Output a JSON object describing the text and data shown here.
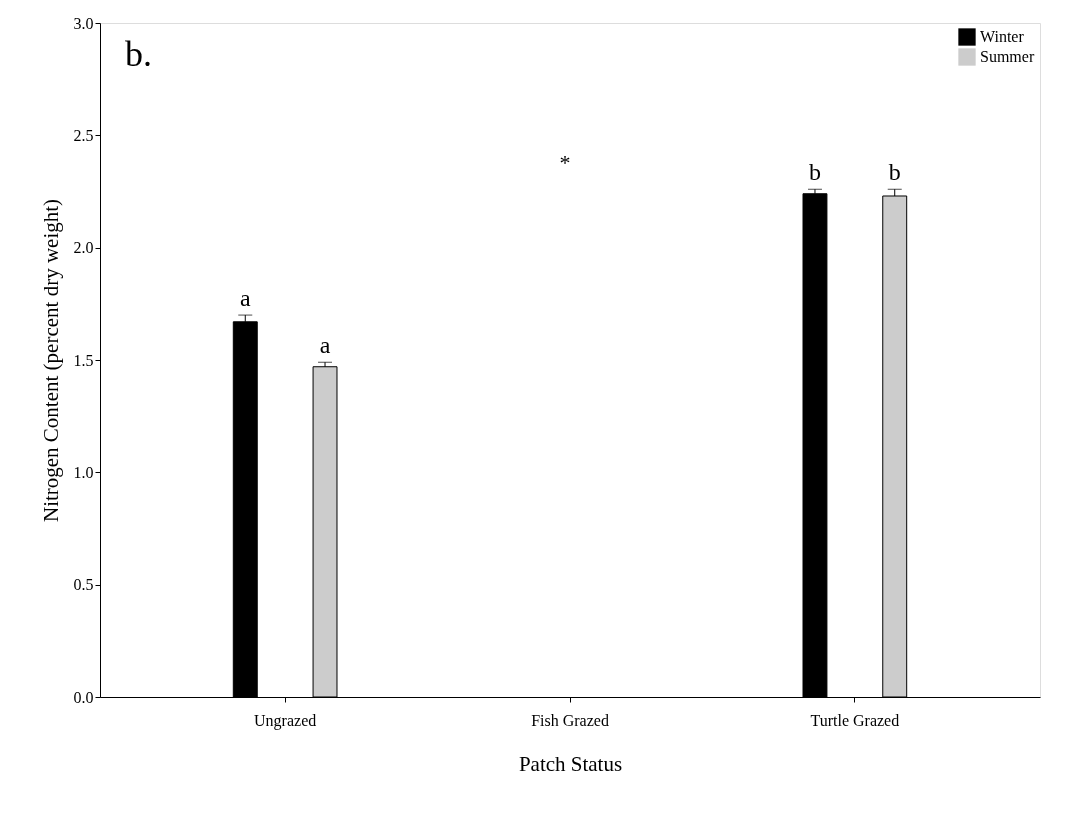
{
  "chart_data": {
    "type": "bar",
    "xlabel": "Patch Status",
    "ylabel": "Nitrogen Content (percent dry weight)",
    "categories": [
      "Ungrazed",
      "Fish Grazed",
      "Turtle Grazed"
    ],
    "series": [
      {
        "name": "Winter",
        "color": "#000000",
        "values": [
          1.67,
          null,
          2.24
        ],
        "errors": [
          [
            1.67,
            1.7
          ],
          null,
          [
            2.24,
            2.26
          ]
        ],
        "value_labels": [
          "a",
          null,
          "b"
        ]
      },
      {
        "name": "Summer",
        "color": "#cccccc",
        "values": [
          1.47,
          null,
          2.23
        ],
        "errors": [
          [
            1.47,
            1.49
          ],
          null,
          [
            2.23,
            2.26
          ]
        ],
        "value_labels": [
          "a",
          null,
          "b"
        ]
      }
    ],
    "ylim": [
      0,
      3
    ],
    "yticks": [
      {
        "value": 0,
        "label": "0.0"
      },
      {
        "value": 0.5,
        "label": "0.5"
      },
      {
        "value": 1,
        "label": "1.0"
      },
      {
        "value": 1.5,
        "label": "1.5"
      },
      {
        "value": 2,
        "label": "2.0"
      },
      {
        "value": 2.5,
        "label": "2.5"
      },
      {
        "value": 3,
        "label": "3.0"
      }
    ],
    "annotations": [
      "b.",
      "*"
    ],
    "legend": "top right",
    "grid": false
  }
}
